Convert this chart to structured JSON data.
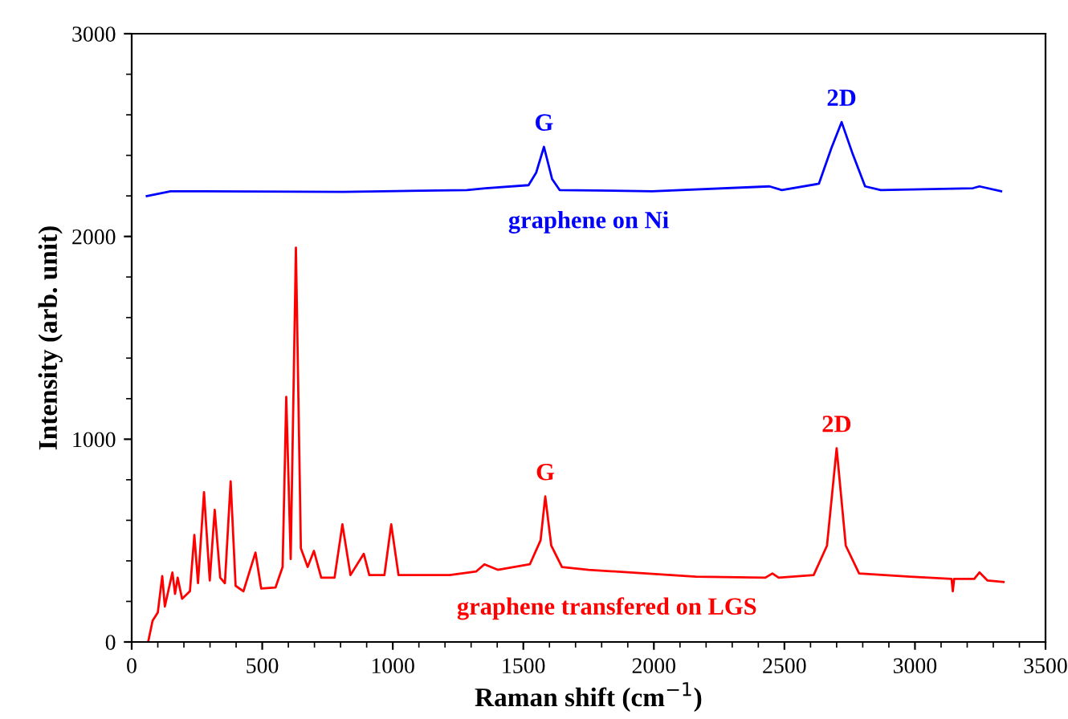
{
  "chart_data": {
    "type": "line",
    "xlabel": "Raman shift (cm$^{−1}$)",
    "ylabel": "Intensity (arb. unit)",
    "xlim": [
      0,
      3500
    ],
    "xticks": [
      0,
      500,
      1000,
      1500,
      2000,
      2500,
      3000,
      3500
    ],
    "ylim": [
      0,
      3000
    ],
    "yticks": [
      0,
      1000,
      2000,
      3000
    ],
    "grid": false,
    "legend": false,
    "marker": "none",
    "line_style": "solid",
    "series": [
      {
        "name": "graphene on Ni",
        "color": "#0000ff",
        "x": [
          58,
          149,
          810,
          1284,
          1355,
          1520,
          1549,
          1579,
          1610,
          1639,
          1993,
          2443,
          2490,
          2632,
          2680,
          2719,
          2762,
          2809,
          2869,
          3222,
          3247,
          3330
        ],
        "values": [
          2199,
          2223,
          2220,
          2229,
          2238,
          2253,
          2314,
          2442,
          2284,
          2229,
          2223,
          2247,
          2229,
          2260,
          2436,
          2564,
          2405,
          2247,
          2229,
          2238,
          2247,
          2223
        ]
      },
      {
        "name": "graphene transfered on LGS",
        "color": "#ff0000",
        "x": [
          63,
          80,
          100,
          117,
          127,
          156,
          166,
          176,
          193,
          223,
          240,
          254,
          277,
          299,
          318,
          339,
          357,
          379,
          398,
          428,
          474,
          496,
          551,
          578,
          592,
          609,
          629,
          648,
          674,
          698,
          726,
          777,
          807,
          838,
          889,
          910,
          968,
          994,
          1022,
          1218,
          1320,
          1351,
          1402,
          1525,
          1566,
          1584,
          1607,
          1648,
          1750,
          2161,
          2427,
          2454,
          2478,
          2612,
          2663,
          2700,
          2735,
          2786,
          2981,
          3140,
          3145,
          3150,
          3227,
          3247,
          3278,
          3339
        ],
        "values": [
          0,
          105,
          145,
          325,
          175,
          343,
          237,
          317,
          213,
          250,
          528,
          290,
          739,
          303,
          652,
          317,
          290,
          792,
          277,
          250,
          441,
          264,
          269,
          370,
          1209,
          409,
          1945,
          462,
          370,
          449,
          317,
          317,
          580,
          330,
          435,
          330,
          330,
          580,
          330,
          330,
          348,
          383,
          356,
          383,
          501,
          718,
          475,
          370,
          356,
          322,
          317,
          338,
          317,
          330,
          475,
          955,
          475,
          338,
          322,
          311,
          250,
          311,
          311,
          343,
          303,
          296
        ]
      }
    ],
    "annotations": [
      {
        "text": "G",
        "x": 1579,
        "y": 2442
      },
      {
        "text": "2D",
        "x": 2719,
        "y": 2564
      },
      {
        "text": "G",
        "x": 1584,
        "y": 718
      },
      {
        "text": "2D",
        "x": 2700,
        "y": 955
      }
    ]
  }
}
